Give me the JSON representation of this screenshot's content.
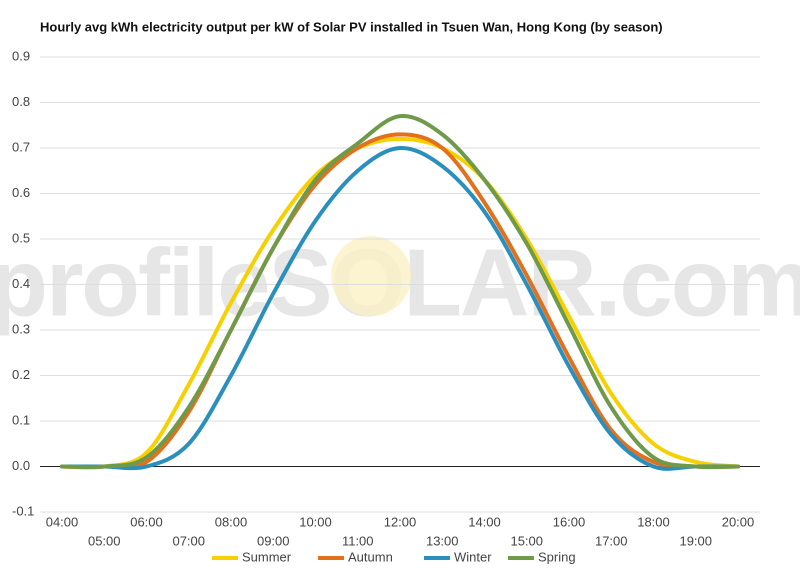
{
  "chart_data": {
    "type": "line",
    "title": "Hourly avg kWh electricity output per kW of Solar PV installed in Tsuen Wan, Hong Kong (by season)",
    "watermark": "profileSOLAR.com",
    "categories": [
      "04:00",
      "05:00",
      "06:00",
      "07:00",
      "08:00",
      "09:00",
      "10:00",
      "11:00",
      "12:00",
      "13:00",
      "14:00",
      "15:00",
      "16:00",
      "17:00",
      "18:00",
      "19:00",
      "20:00"
    ],
    "series": [
      {
        "name": "Summer",
        "color": "#f7d000",
        "values": [
          0.0,
          0.0,
          0.03,
          0.18,
          0.36,
          0.52,
          0.64,
          0.7,
          0.72,
          0.7,
          0.63,
          0.5,
          0.33,
          0.16,
          0.05,
          0.01,
          0.0
        ]
      },
      {
        "name": "Autumn",
        "color": "#e2701c",
        "values": [
          0.0,
          0.0,
          0.01,
          0.12,
          0.3,
          0.48,
          0.62,
          0.7,
          0.73,
          0.7,
          0.58,
          0.42,
          0.24,
          0.08,
          0.01,
          0.0,
          0.0
        ]
      },
      {
        "name": "Winter",
        "color": "#2a8fbd",
        "values": [
          0.0,
          0.0,
          0.0,
          0.05,
          0.2,
          0.38,
          0.54,
          0.65,
          0.7,
          0.66,
          0.56,
          0.4,
          0.22,
          0.07,
          0.0,
          0.0,
          0.0
        ]
      },
      {
        "name": "Spring",
        "color": "#6f9a4a",
        "values": [
          0.0,
          0.0,
          0.02,
          0.13,
          0.3,
          0.48,
          0.63,
          0.71,
          0.77,
          0.73,
          0.63,
          0.49,
          0.31,
          0.13,
          0.02,
          0.0,
          0.0
        ]
      }
    ],
    "ylim": [
      -0.1,
      0.9
    ],
    "yticks": [
      -0.1,
      {
        "value": 0,
        "label": "0.0"
      },
      0.1,
      0.2,
      0.3,
      0.4,
      0.5,
      0.6,
      0.7,
      0.8,
      0.9
    ],
    "grid": true,
    "legend": "bottom"
  }
}
